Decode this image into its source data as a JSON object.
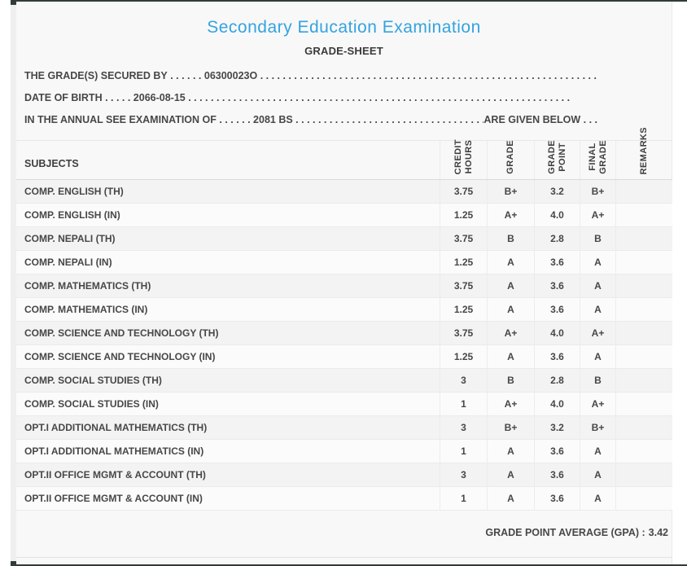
{
  "header": {
    "title": "Secondary Education Examination",
    "subtitle": "GRADE-SHEET"
  },
  "info": {
    "line1": {
      "label": "THE GRADE(S) SECURED BY",
      "dots_before": " . . . . . . ",
      "value": "06300023O",
      "dots_after": " . . . . . . . . . . . . . . . . . . . . . . . . . . . . . . . . . . . . . . . . . . . . . . . . . . . . . . . . . . . . . . . . . . . ."
    },
    "line2": {
      "label": "DATE OF BIRTH",
      "dots_before": " . . . . . ",
      "value": "2066-08-15",
      "dots_after": " . . . . . . . . . . . . . . . . . . . . . . . . . . . . . . . . . . . . . . . . . . . . . . . . . . . . . . . . . . . . . . . . . . . ."
    },
    "line3": {
      "label": "IN THE ANNUAL SEE EXAMINATION OF",
      "dots_before": " . . . . . . ",
      "value": "2081 BS",
      "dots_after": " . . . . . . . . . . . . . . . . . . . . . . . . . . . . . . . . . . . . . . . . . . . . ",
      "suffix": "ARE GIVEN BELOW",
      "suffix_dots": " . . ."
    }
  },
  "table": {
    "subjects_header": "SUBJECTS",
    "columns": [
      {
        "id": "credit_hours",
        "lines": [
          "CREDIT",
          "HOURS"
        ]
      },
      {
        "id": "grade",
        "lines": [
          "GRADE"
        ]
      },
      {
        "id": "grade_point",
        "lines": [
          "GRADE",
          "POINT"
        ]
      },
      {
        "id": "final_grade",
        "lines": [
          "FINAL",
          "GRADE"
        ]
      },
      {
        "id": "remarks",
        "lines": [
          "REMARKS"
        ]
      }
    ],
    "rows": [
      {
        "subject": "COMP. ENGLISH (TH)",
        "credit_hours": "3.75",
        "grade": "B+",
        "grade_point": "3.2",
        "final_grade": "B+",
        "remarks": ""
      },
      {
        "subject": "COMP. ENGLISH (IN)",
        "credit_hours": "1.25",
        "grade": "A+",
        "grade_point": "4.0",
        "final_grade": "A+",
        "remarks": ""
      },
      {
        "subject": "COMP. NEPALI (TH)",
        "credit_hours": "3.75",
        "grade": "B",
        "grade_point": "2.8",
        "final_grade": "B",
        "remarks": ""
      },
      {
        "subject": "COMP. NEPALI (IN)",
        "credit_hours": "1.25",
        "grade": "A",
        "grade_point": "3.6",
        "final_grade": "A",
        "remarks": ""
      },
      {
        "subject": "COMP. MATHEMATICS (TH)",
        "credit_hours": "3.75",
        "grade": "A",
        "grade_point": "3.6",
        "final_grade": "A",
        "remarks": ""
      },
      {
        "subject": "COMP. MATHEMATICS (IN)",
        "credit_hours": "1.25",
        "grade": "A",
        "grade_point": "3.6",
        "final_grade": "A",
        "remarks": ""
      },
      {
        "subject": "COMP. SCIENCE AND TECHNOLOGY (TH)",
        "credit_hours": "3.75",
        "grade": "A+",
        "grade_point": "4.0",
        "final_grade": "A+",
        "remarks": ""
      },
      {
        "subject": "COMP. SCIENCE AND TECHNOLOGY (IN)",
        "credit_hours": "1.25",
        "grade": "A",
        "grade_point": "3.6",
        "final_grade": "A",
        "remarks": ""
      },
      {
        "subject": "COMP. SOCIAL STUDIES (TH)",
        "credit_hours": "3",
        "grade": "B",
        "grade_point": "2.8",
        "final_grade": "B",
        "remarks": ""
      },
      {
        "subject": "COMP. SOCIAL STUDIES (IN)",
        "credit_hours": "1",
        "grade": "A+",
        "grade_point": "4.0",
        "final_grade": "A+",
        "remarks": ""
      },
      {
        "subject": "OPT.I ADDITIONAL MATHEMATICS (TH)",
        "credit_hours": "3",
        "grade": "B+",
        "grade_point": "3.2",
        "final_grade": "B+",
        "remarks": ""
      },
      {
        "subject": "OPT.I ADDITIONAL MATHEMATICS (IN)",
        "credit_hours": "1",
        "grade": "A",
        "grade_point": "3.6",
        "final_grade": "A",
        "remarks": ""
      },
      {
        "subject": "OPT.II OFFICE MGMT & ACCOUNT (TH)",
        "credit_hours": "3",
        "grade": "A",
        "grade_point": "3.6",
        "final_grade": "A",
        "remarks": ""
      },
      {
        "subject": "OPT.II OFFICE MGMT & ACCOUNT (IN)",
        "credit_hours": "1",
        "grade": "A",
        "grade_point": "3.6",
        "final_grade": "A",
        "remarks": ""
      }
    ]
  },
  "footer": {
    "gpa_label": "GRADE POINT AVERAGE (GPA) :",
    "gpa_value": "3.42"
  },
  "colors": {
    "title_blue": "#33a3e0",
    "bar_dark": "#333b3a",
    "text": "#474747"
  }
}
